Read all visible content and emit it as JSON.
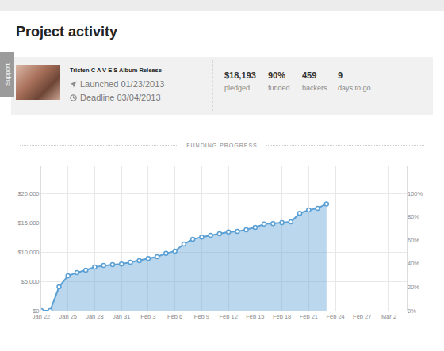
{
  "page": {
    "heading": "Project activity",
    "support_tab": "Support",
    "project": {
      "name": "Tristen C A V E S Album Release",
      "launched": "Launched 01/23/2013",
      "deadline": "Deadline 03/04/2013"
    },
    "stats": [
      {
        "value": "$18,193",
        "label": "pledged"
      },
      {
        "value": "90%",
        "label": "funded"
      },
      {
        "value": "459",
        "label": "backers"
      },
      {
        "value": "9",
        "label": "days to go"
      }
    ]
  },
  "chart_data": {
    "type": "area",
    "title": "FUNDING PROGRESS",
    "categories": [
      "Jan 22",
      null,
      null,
      "Jan 25",
      null,
      null,
      "Jan 28",
      null,
      null,
      "Jan 31",
      null,
      null,
      "Feb 3",
      null,
      null,
      "Feb 6",
      null,
      null,
      "Feb 9",
      null,
      null,
      "Feb 12",
      null,
      null,
      "Feb 15",
      null,
      null,
      "Feb 18",
      null,
      null,
      "Feb 21",
      null,
      null,
      "Feb 24",
      null,
      null,
      "Feb 27",
      null,
      null,
      "Mar 2",
      null,
      null
    ],
    "values": [
      0,
      0,
      4050,
      5950,
      6500,
      6900,
      7450,
      7700,
      7850,
      7950,
      8250,
      8500,
      8900,
      9200,
      9750,
      10150,
      11350,
      12150,
      12550,
      12850,
      13100,
      13400,
      13500,
      13800,
      14200,
      14750,
      14850,
      15000,
      15150,
      16600,
      17150,
      17450,
      18193,
      null,
      null,
      null,
      null,
      null,
      null,
      null,
      null,
      null
    ],
    "color": "#5a9fd4",
    "marker": "circle",
    "ylim": [
      0,
      24600
    ],
    "yticks": [
      {
        "value": 0,
        "label": "$0"
      },
      {
        "value": 5000,
        "label": "$5,000"
      },
      {
        "value": 10000,
        "label": "$10,000"
      },
      {
        "value": 15000,
        "label": "$15,000"
      },
      {
        "value": 20000,
        "label": "$20,000"
      }
    ],
    "y2lim": [
      0,
      123
    ],
    "y2ticks": [
      {
        "value": 0,
        "label": "0%"
      },
      {
        "value": 20,
        "label": "20%"
      },
      {
        "value": 40,
        "label": "40%"
      },
      {
        "value": 60,
        "label": "60%"
      },
      {
        "value": 80,
        "label": "80%"
      },
      {
        "value": 100,
        "label": "100%"
      }
    ],
    "goal_line": {
      "value": 20000,
      "color": "#b7dc8e"
    },
    "grid": true
  }
}
